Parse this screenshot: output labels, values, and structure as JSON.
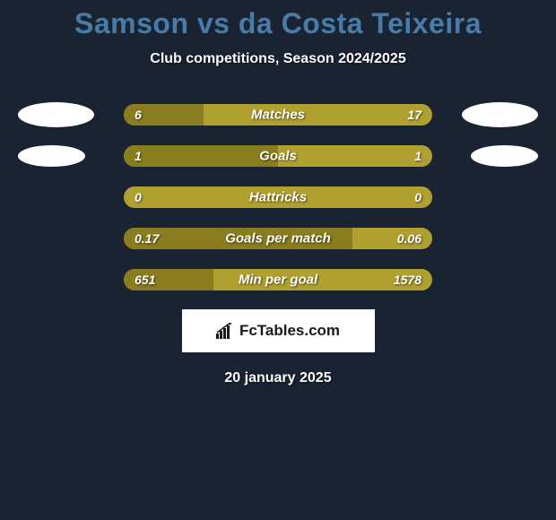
{
  "title": "Samson vs da Costa Teixeira",
  "subtitle": "Club competitions, Season 2024/2025",
  "date": "20 january 2025",
  "logo_text": "FcTables.com",
  "colors": {
    "background": "#1a2332",
    "title_color": "#4a7ba6",
    "bar_light": "#b0a030",
    "bar_dark": "#8a7d1f",
    "avatar": "#ffffff"
  },
  "stats": [
    {
      "label": "Matches",
      "left_value": "6",
      "right_value": "17",
      "left_fill_pct": 26,
      "show_avatar": true,
      "avatar_size": "large"
    },
    {
      "label": "Goals",
      "left_value": "1",
      "right_value": "1",
      "left_fill_pct": 50,
      "show_avatar": true,
      "avatar_size": "small"
    },
    {
      "label": "Hattricks",
      "left_value": "0",
      "right_value": "0",
      "left_fill_pct": 0,
      "show_avatar": false
    },
    {
      "label": "Goals per match",
      "left_value": "0.17",
      "right_value": "0.06",
      "left_fill_pct": 74,
      "show_avatar": false
    },
    {
      "label": "Min per goal",
      "left_value": "651",
      "right_value": "1578",
      "left_fill_pct": 29,
      "show_avatar": false
    }
  ]
}
